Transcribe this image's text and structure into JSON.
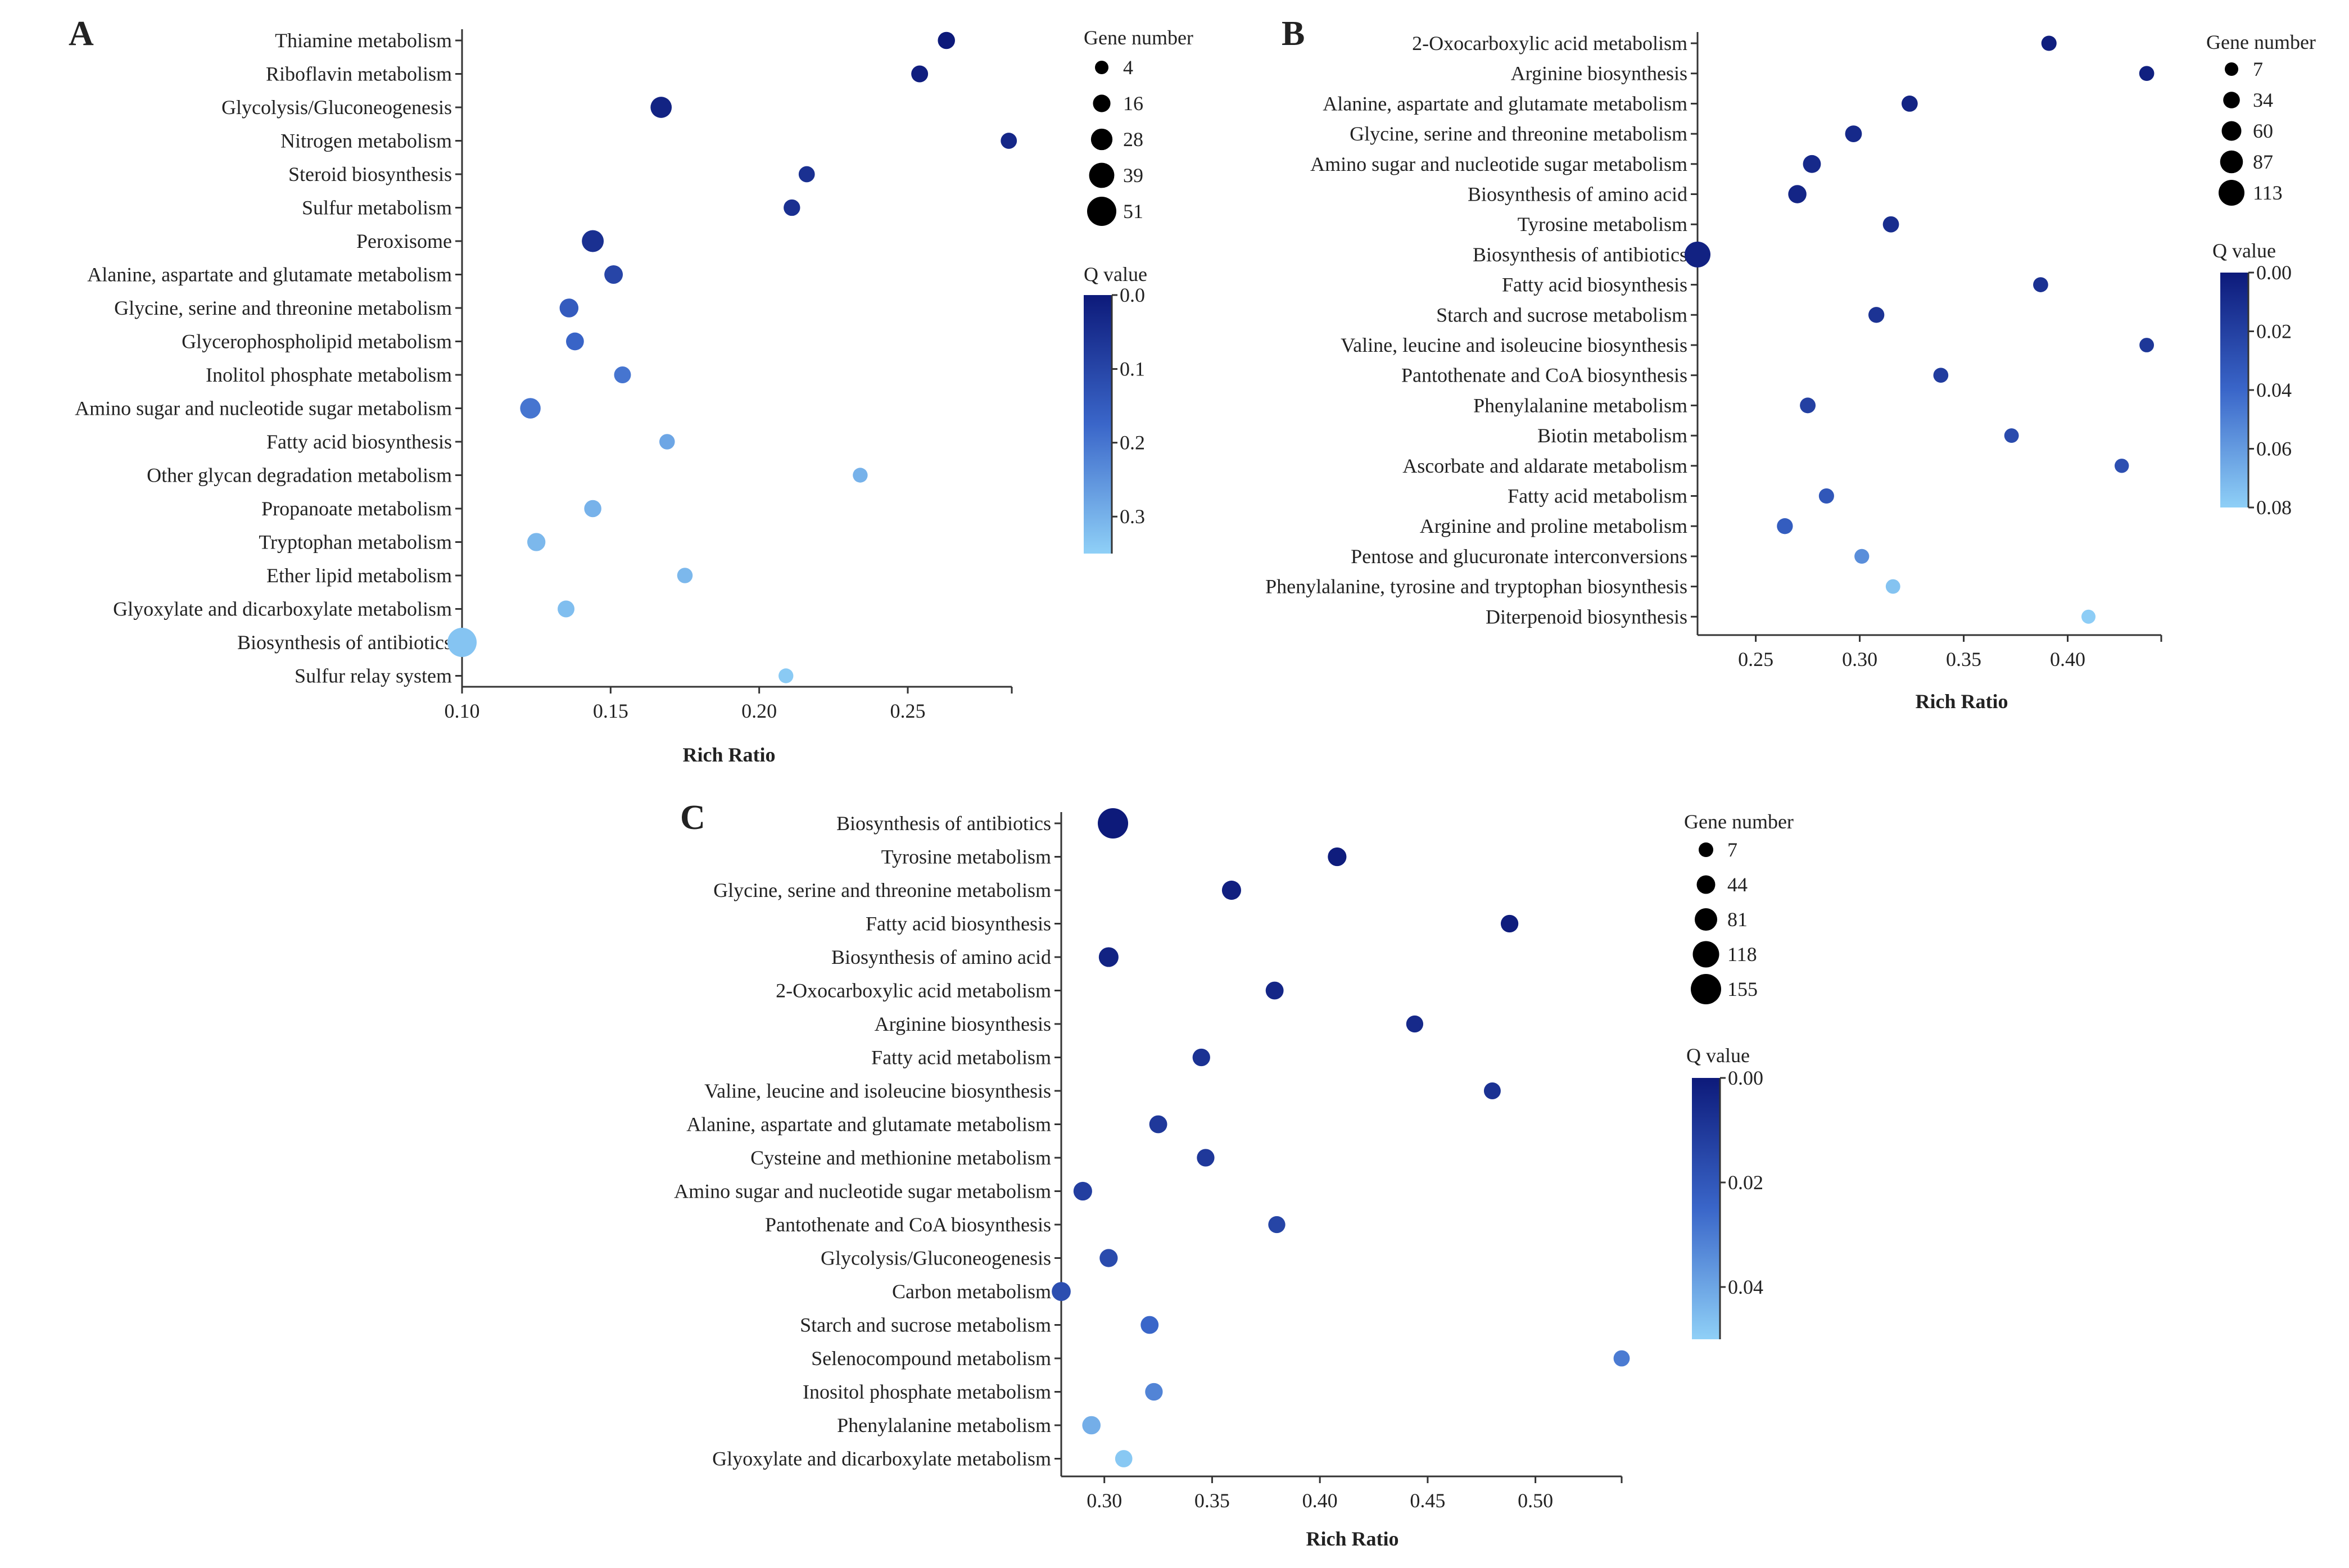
{
  "colors": {
    "q_high": "#0d1a7a",
    "q_mid": "#3a66c9",
    "q_low": "#8fd0f7",
    "axis": "#333333"
  },
  "chart_data": [
    {
      "type": "scatter",
      "panel": "A",
      "xlabel": "Rich Ratio",
      "xlim": [
        0.1,
        0.285
      ],
      "x_ticks": [
        "0.10",
        "0.15",
        "0.20",
        "0.25"
      ],
      "size_legend_title": "Gene number",
      "size_legend": [
        4,
        16,
        28,
        39,
        51
      ],
      "color_legend_title": "Q value",
      "q_range": [
        0.0,
        0.35
      ],
      "q_ticks": [
        "0.0",
        "0.1",
        "0.2",
        "0.3"
      ],
      "points": [
        {
          "label": "Thiamine metabolism",
          "x": 0.263,
          "genes": 15,
          "q": 0.0
        },
        {
          "label": "Riboflavin metabolism",
          "x": 0.254,
          "genes": 14,
          "q": 0.01
        },
        {
          "label": "Glycolysis/Gluconeogenesis",
          "x": 0.167,
          "genes": 27,
          "q": 0.02
        },
        {
          "label": "Nitrogen metabolism",
          "x": 0.284,
          "genes": 12,
          "q": 0.03
        },
        {
          "label": "Steroid biosynthesis",
          "x": 0.216,
          "genes": 12,
          "q": 0.05
        },
        {
          "label": "Sulfur metabolism",
          "x": 0.211,
          "genes": 13,
          "q": 0.05
        },
        {
          "label": "Peroxisome",
          "x": 0.144,
          "genes": 29,
          "q": 0.05
        },
        {
          "label": "Alanine, aspartate and glutamate metabolism",
          "x": 0.151,
          "genes": 19,
          "q": 0.1
        },
        {
          "label": "Glycine, serine and threonine metabolism",
          "x": 0.136,
          "genes": 20,
          "q": 0.15
        },
        {
          "label": "Glycerophospholipid metabolism",
          "x": 0.138,
          "genes": 17,
          "q": 0.17
        },
        {
          "label": "Inolitol phosphate metabolism",
          "x": 0.154,
          "genes": 14,
          "q": 0.2
        },
        {
          "label": "Amino sugar and nucleotide sugar metabolism",
          "x": 0.123,
          "genes": 25,
          "q": 0.2
        },
        {
          "label": "Fatty acid biosynthesis",
          "x": 0.169,
          "genes": 10,
          "q": 0.28
        },
        {
          "label": "Other glycan degradation metabolism",
          "x": 0.234,
          "genes": 8,
          "q": 0.3
        },
        {
          "label": "Propanoate metabolism",
          "x": 0.144,
          "genes": 15,
          "q": 0.3
        },
        {
          "label": "Tryptophan metabolism",
          "x": 0.125,
          "genes": 18,
          "q": 0.31
        },
        {
          "label": "Ether lipid metabolism",
          "x": 0.175,
          "genes": 10,
          "q": 0.31
        },
        {
          "label": "Glyoxylate and dicarboxylate metabolism",
          "x": 0.135,
          "genes": 14,
          "q": 0.32
        },
        {
          "label": "Biosynthesis of antibiotics",
          "x": 0.1,
          "genes": 51,
          "q": 0.33
        },
        {
          "label": "Sulfur relay system",
          "x": 0.209,
          "genes": 8,
          "q": 0.34
        }
      ]
    },
    {
      "type": "scatter",
      "panel": "B",
      "xlabel": "Rich Ratio",
      "xlim": [
        0.222,
        0.445
      ],
      "x_ticks": [
        "0.25",
        "0.30",
        "0.35",
        "0.40"
      ],
      "size_legend_title": "Gene number",
      "size_legend": [
        7,
        34,
        60,
        87,
        113
      ],
      "color_legend_title": "Q value",
      "q_range": [
        0.0,
        0.08
      ],
      "q_ticks": [
        "0.00",
        "0.02",
        "0.04",
        "0.06",
        "0.08"
      ],
      "points": [
        {
          "label": "2-Oxocarboxylic acid metabolism",
          "x": 0.391,
          "genes": 22,
          "q": 0.002
        },
        {
          "label": "Arginine biosynthesis",
          "x": 0.438,
          "genes": 20,
          "q": 0.003
        },
        {
          "label": "Alanine, aspartate and glutamate metabolism",
          "x": 0.324,
          "genes": 30,
          "q": 0.005
        },
        {
          "label": "Glycine, serine and threonine metabolism",
          "x": 0.297,
          "genes": 35,
          "q": 0.008
        },
        {
          "label": "Amino sugar and nucleotide sugar metabolism",
          "x": 0.277,
          "genes": 45,
          "q": 0.008
        },
        {
          "label": "Biosynthesis of amino acid",
          "x": 0.27,
          "genes": 48,
          "q": 0.006
        },
        {
          "label": "Tyrosine metabolism",
          "x": 0.315,
          "genes": 30,
          "q": 0.01
        },
        {
          "label": "Biosynthesis of antibiotics",
          "x": 0.222,
          "genes": 113,
          "q": 0.004
        },
        {
          "label": "Fatty acid biosynthesis",
          "x": 0.387,
          "genes": 20,
          "q": 0.012
        },
        {
          "label": "Starch and sucrose metabolism",
          "x": 0.308,
          "genes": 28,
          "q": 0.013
        },
        {
          "label": "Valine, leucine and isoleucine biosynthesis",
          "x": 0.438,
          "genes": 16,
          "q": 0.015
        },
        {
          "label": "Pantothenate and CoA biosynthesis",
          "x": 0.339,
          "genes": 20,
          "q": 0.018
        },
        {
          "label": "Phenylalanine metabolism",
          "x": 0.275,
          "genes": 26,
          "q": 0.02
        },
        {
          "label": "Biotin metabolism",
          "x": 0.373,
          "genes": 16,
          "q": 0.026
        },
        {
          "label": "Ascorbate and aldarate metabolism",
          "x": 0.426,
          "genes": 14,
          "q": 0.028
        },
        {
          "label": "Fatty acid metabolism",
          "x": 0.284,
          "genes": 22,
          "q": 0.032
        },
        {
          "label": "Arginine and proline metabolism",
          "x": 0.264,
          "genes": 28,
          "q": 0.035
        },
        {
          "label": "Pentose and glucuronate interconversions",
          "x": 0.301,
          "genes": 18,
          "q": 0.055
        },
        {
          "label": "Phenylalanine, tyrosine and tryptophan biosynthesis",
          "x": 0.316,
          "genes": 16,
          "q": 0.075
        },
        {
          "label": "Diterpenoid biosynthesis",
          "x": 0.41,
          "genes": 12,
          "q": 0.079
        }
      ]
    },
    {
      "type": "scatter",
      "panel": "C",
      "xlabel": "Rich Ratio",
      "xlim": [
        0.28,
        0.54
      ],
      "x_ticks": [
        "0.30",
        "0.35",
        "0.40",
        "0.45",
        "0.50"
      ],
      "size_legend_title": "Gene number",
      "size_legend": [
        7,
        44,
        81,
        118,
        155
      ],
      "color_legend_title": "Q value",
      "q_range": [
        0.0,
        0.05
      ],
      "q_ticks": [
        "0.00",
        "0.02",
        "0.04"
      ],
      "points": [
        {
          "label": "Biosynthesis of antibiotics",
          "x": 0.304,
          "genes": 155,
          "q": 0.0
        },
        {
          "label": "Tyrosine metabolism",
          "x": 0.408,
          "genes": 45,
          "q": 0.001
        },
        {
          "label": "Glycine, serine and threonine metabolism",
          "x": 0.359,
          "genes": 50,
          "q": 0.002
        },
        {
          "label": "Fatty acid biosynthesis",
          "x": 0.488,
          "genes": 35,
          "q": 0.001
        },
        {
          "label": "Biosynthesis of amino acid",
          "x": 0.302,
          "genes": 55,
          "q": 0.003
        },
        {
          "label": "2-Oxocarboxylic acid metabolism",
          "x": 0.379,
          "genes": 38,
          "q": 0.004
        },
        {
          "label": "Arginine biosynthesis",
          "x": 0.444,
          "genes": 30,
          "q": 0.005
        },
        {
          "label": "Fatty acid metabolism",
          "x": 0.345,
          "genes": 35,
          "q": 0.008
        },
        {
          "label": "Valine, leucine and isoleucine biosynthesis",
          "x": 0.48,
          "genes": 28,
          "q": 0.008
        },
        {
          "label": "Alanine, aspartate and glutamate metabolism",
          "x": 0.325,
          "genes": 38,
          "q": 0.01
        },
        {
          "label": "Cysteine and methionine metabolism",
          "x": 0.347,
          "genes": 35,
          "q": 0.01
        },
        {
          "label": "Amino sugar and nucleotide sugar metabolism",
          "x": 0.29,
          "genes": 45,
          "q": 0.012
        },
        {
          "label": "Pantothenate and CoA biosynthesis",
          "x": 0.38,
          "genes": 30,
          "q": 0.014
        },
        {
          "label": "Glycolysis/Gluconeogenesis",
          "x": 0.302,
          "genes": 40,
          "q": 0.016
        },
        {
          "label": "Carbon metabolism",
          "x": 0.28,
          "genes": 48,
          "q": 0.017
        },
        {
          "label": "Starch and sucrose metabolism",
          "x": 0.321,
          "genes": 38,
          "q": 0.025
        },
        {
          "label": "Selenocompound metabolism",
          "x": 0.54,
          "genes": 22,
          "q": 0.03
        },
        {
          "label": "Inositol phosphate metabolism",
          "x": 0.323,
          "genes": 35,
          "q": 0.032
        },
        {
          "label": "Phenylalanine metabolism",
          "x": 0.294,
          "genes": 42,
          "q": 0.042
        },
        {
          "label": "Glyoxylate and dicarboxylate metabolism",
          "x": 0.309,
          "genes": 32,
          "q": 0.048
        }
      ]
    }
  ]
}
